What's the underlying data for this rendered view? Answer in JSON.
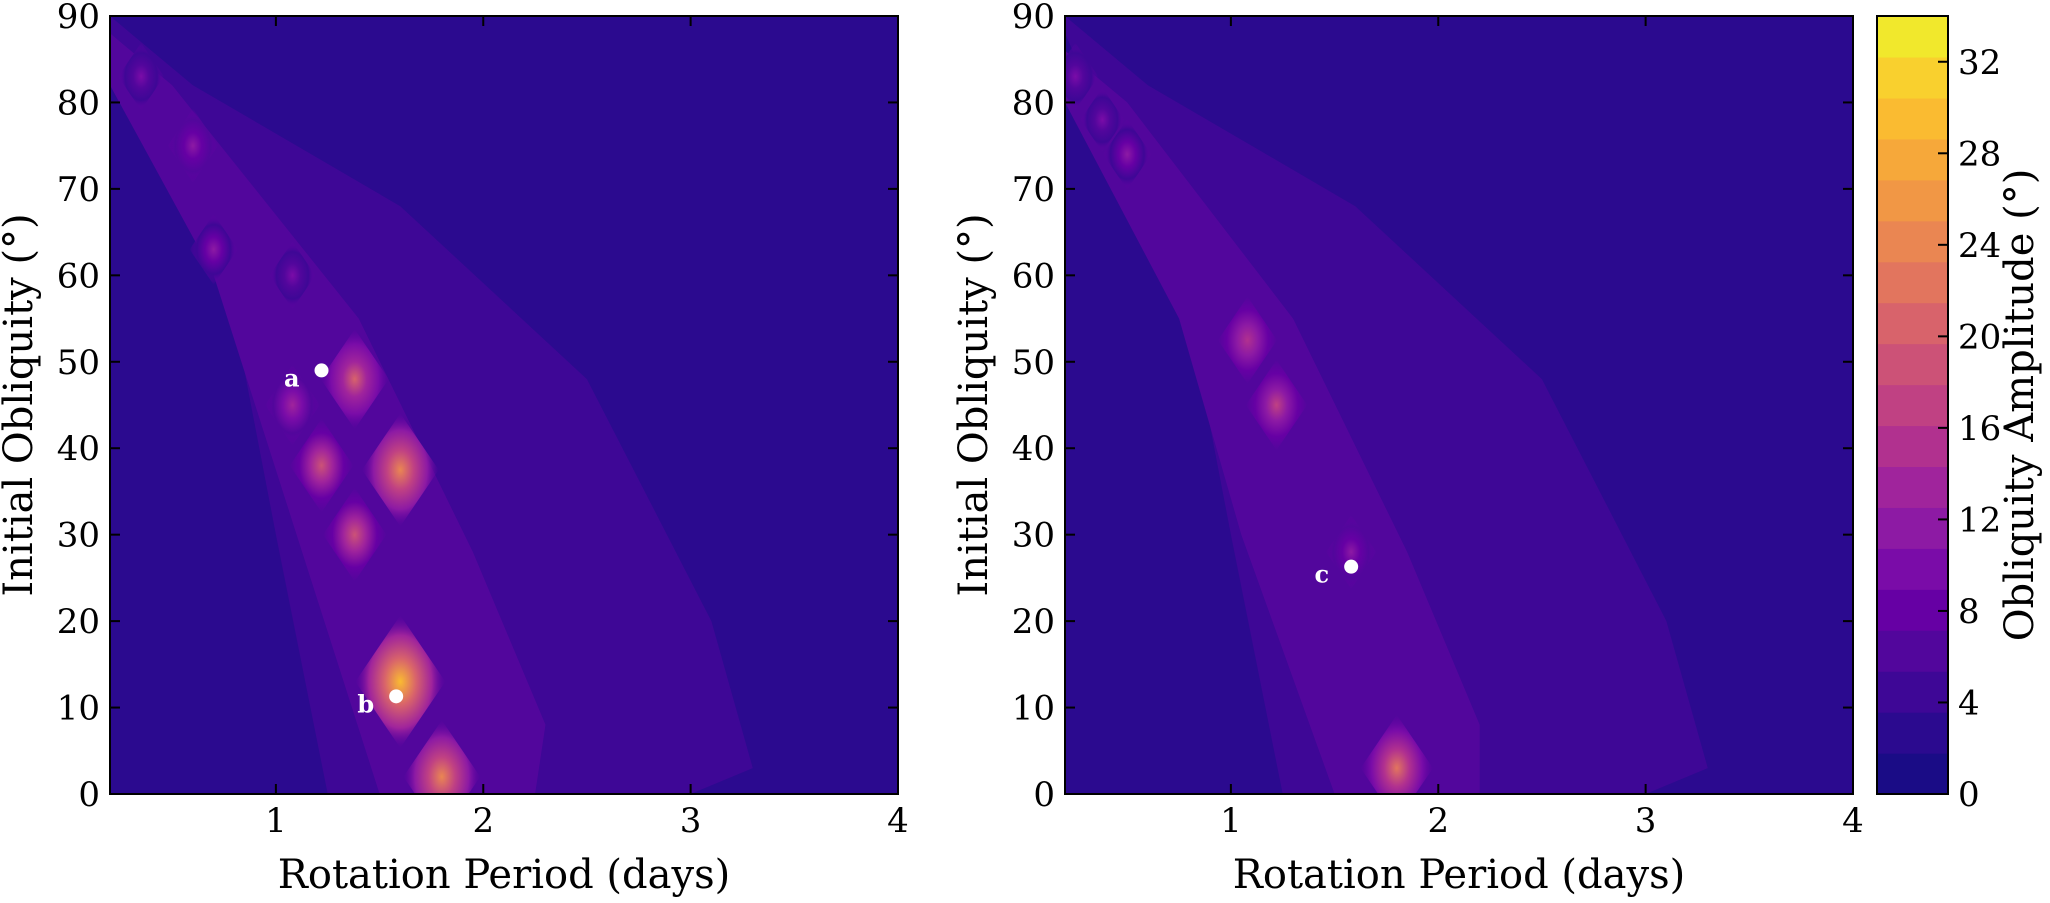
{
  "chart_data": [
    {
      "type": "contour",
      "panel": "left",
      "xlabel": "Rotation Period (days)",
      "ylabel": "Initial Obliquity (°)",
      "xlim": [
        0.2,
        4
      ],
      "ylim": [
        0,
        90
      ],
      "xticks": [
        "1",
        "2",
        "3",
        "4"
      ],
      "yticks": [
        "0",
        "10",
        "20",
        "30",
        "40",
        "50",
        "60",
        "70",
        "80",
        "90"
      ],
      "background_value": 2,
      "envelope": [
        [
          0.2,
          90
        ],
        [
          0.6,
          82
        ],
        [
          1.6,
          68
        ],
        [
          2.5,
          48
        ],
        [
          3.1,
          20
        ],
        [
          3.3,
          3
        ],
        [
          3.0,
          0
        ],
        [
          1.25,
          0
        ],
        [
          1.0,
          30
        ],
        [
          0.8,
          55
        ],
        [
          0.2,
          88
        ]
      ],
      "band": [
        [
          0.2,
          88
        ],
        [
          0.5,
          82
        ],
        [
          1.4,
          55
        ],
        [
          1.95,
          28
        ],
        [
          2.3,
          8
        ],
        [
          2.25,
          0
        ],
        [
          1.5,
          0
        ],
        [
          1.1,
          30
        ],
        [
          0.7,
          60
        ],
        [
          0.2,
          82
        ]
      ],
      "hotspots": [
        {
          "x": 0.35,
          "y": 83,
          "amplitude": 10
        },
        {
          "x": 0.6,
          "y": 75,
          "amplitude": 12
        },
        {
          "x": 0.7,
          "y": 63,
          "amplitude": 11
        },
        {
          "x": 1.08,
          "y": 60,
          "amplitude": 10
        },
        {
          "x": 1.08,
          "y": 45,
          "amplitude": 14
        },
        {
          "x": 1.38,
          "y": 48,
          "amplitude": 20
        },
        {
          "x": 1.22,
          "y": 38,
          "amplitude": 18
        },
        {
          "x": 1.6,
          "y": 37.5,
          "amplitude": 24
        },
        {
          "x": 1.38,
          "y": 30,
          "amplitude": 18
        },
        {
          "x": 1.6,
          "y": 13,
          "amplitude": 30
        },
        {
          "x": 1.8,
          "y": 2,
          "amplitude": 24
        }
      ],
      "points": [
        {
          "label": "a",
          "x": 1.22,
          "y": 49
        },
        {
          "label": "b",
          "x": 1.58,
          "y": 11.3
        }
      ]
    },
    {
      "type": "contour",
      "panel": "right",
      "xlabel": "Rotation Period (days)",
      "ylabel": "Initial Obliquity (°)",
      "xlim": [
        0.2,
        4
      ],
      "ylim": [
        0,
        90
      ],
      "xticks": [
        "1",
        "2",
        "3",
        "4"
      ],
      "yticks": [
        "0",
        "10",
        "20",
        "30",
        "40",
        "50",
        "60",
        "70",
        "80",
        "90"
      ],
      "background_value": 2,
      "envelope": [
        [
          0.2,
          90
        ],
        [
          0.6,
          82
        ],
        [
          1.6,
          68
        ],
        [
          2.5,
          48
        ],
        [
          3.1,
          20
        ],
        [
          3.3,
          3
        ],
        [
          3.0,
          0
        ],
        [
          1.25,
          0
        ],
        [
          1.0,
          30
        ],
        [
          0.8,
          55
        ],
        [
          0.2,
          88
        ]
      ],
      "band": [
        [
          0.2,
          86
        ],
        [
          0.5,
          80
        ],
        [
          1.3,
          55
        ],
        [
          1.85,
          28
        ],
        [
          2.2,
          8
        ],
        [
          2.2,
          0
        ],
        [
          1.5,
          0
        ],
        [
          1.05,
          30
        ],
        [
          0.75,
          55
        ],
        [
          0.2,
          80
        ]
      ],
      "hotspots": [
        {
          "x": 0.25,
          "y": 83,
          "amplitude": 10
        },
        {
          "x": 0.38,
          "y": 78,
          "amplitude": 9
        },
        {
          "x": 0.5,
          "y": 74,
          "amplitude": 11
        },
        {
          "x": 1.08,
          "y": 52.5,
          "amplitude": 16
        },
        {
          "x": 1.22,
          "y": 45,
          "amplitude": 17
        },
        {
          "x": 1.58,
          "y": 28,
          "amplitude": 12
        },
        {
          "x": 1.8,
          "y": 3,
          "amplitude": 22
        }
      ],
      "points": [
        {
          "label": "c",
          "x": 1.58,
          "y": 26.3
        }
      ]
    }
  ],
  "colorbar": {
    "label": "Obliquity Amplitude (°)",
    "min": 0,
    "max": 34,
    "ticks": [
      "0",
      "4",
      "8",
      "12",
      "16",
      "20",
      "24",
      "28",
      "32"
    ],
    "colors": [
      "#1a0c86",
      "#2b0a8f",
      "#3e0796",
      "#52069c",
      "#6600a4",
      "#7a0ca8",
      "#8d1aa4",
      "#a0249c",
      "#b1318f",
      "#c04183",
      "#cc5277",
      "#d8636b",
      "#e2755e",
      "#ea8652",
      "#f19745",
      "#f6a83a",
      "#fabb31",
      "#f9d02e",
      "#f1e82c"
    ]
  }
}
